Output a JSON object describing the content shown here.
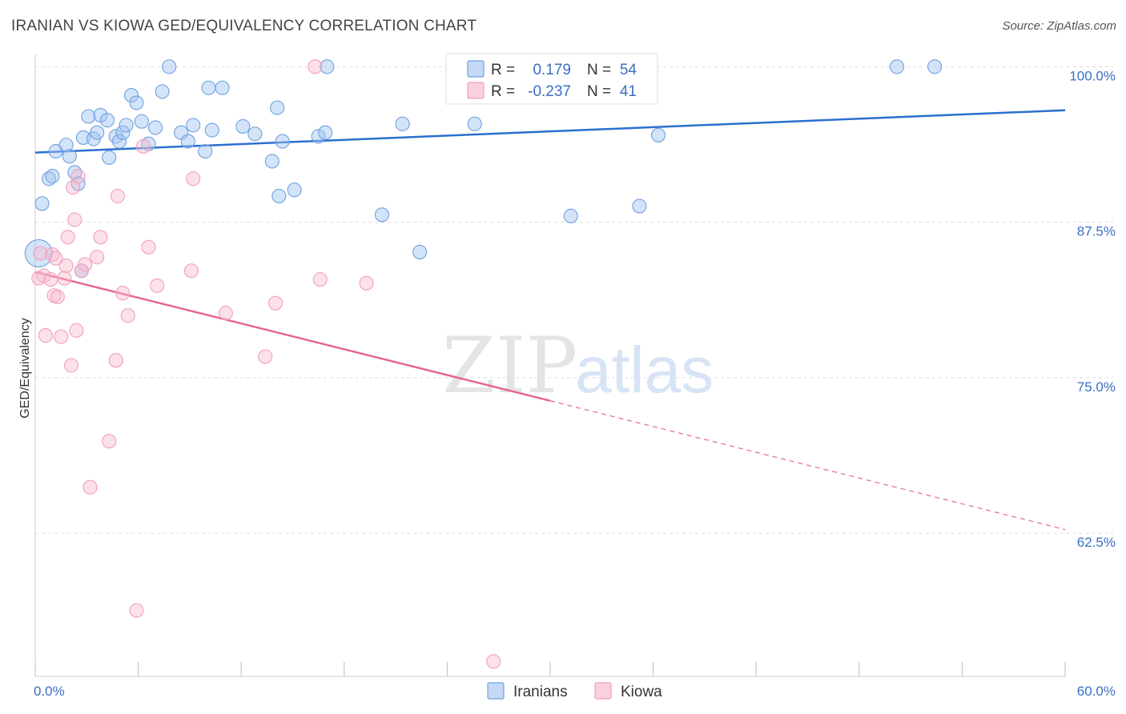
{
  "title": "IRANIAN VS KIOWA GED/EQUIVALENCY CORRELATION CHART",
  "source": "Source: ZipAtlas.com",
  "watermark": {
    "zip": "ZIP",
    "atlas": "atlas"
  },
  "legend_top": [
    {
      "r_label": "R =",
      "r_value": "0.179",
      "n_label": "N =",
      "n_value": "54",
      "color": "#6fa1e0"
    },
    {
      "r_label": "R =",
      "r_value": "-0.237",
      "n_label": "N =",
      "n_value": "41",
      "color": "#f0a0b8"
    }
  ],
  "chart_data": {
    "type": "scatter",
    "xlabel": "",
    "ylabel": "GED/Equivalency",
    "xlim": [
      0,
      60
    ],
    "ylim": [
      51,
      101.5
    ],
    "x_tick_labels": [
      "0.0%",
      "60.0%"
    ],
    "y_ticks": [
      62.5,
      75.0,
      87.5,
      100.0
    ],
    "y_tick_labels": [
      "62.5%",
      "75.0%",
      "87.5%",
      "100.0%"
    ],
    "grid": true,
    "legend_position": "bottom-center",
    "series": [
      {
        "name": "Iranians",
        "color": "#6fa1e0",
        "line_color": "#2a6fcf",
        "trend": {
          "x0": 0,
          "y0": 93.1,
          "x1": 60,
          "y1": 96.5,
          "solid_until": 60
        },
        "points": [
          [
            0.4,
            89.0
          ],
          [
            0.8,
            91.0
          ],
          [
            1.0,
            91.2
          ],
          [
            1.2,
            93.2
          ],
          [
            1.8,
            93.7
          ],
          [
            2.0,
            92.8
          ],
          [
            2.3,
            91.5
          ],
          [
            2.5,
            90.6
          ],
          [
            2.8,
            94.3
          ],
          [
            3.1,
            96.0
          ],
          [
            3.4,
            94.2
          ],
          [
            3.6,
            94.7
          ],
          [
            3.8,
            96.1
          ],
          [
            4.2,
            95.7
          ],
          [
            4.3,
            92.7
          ],
          [
            4.7,
            94.4
          ],
          [
            4.9,
            94.0
          ],
          [
            5.1,
            94.7
          ],
          [
            5.3,
            95.3
          ],
          [
            5.6,
            97.7
          ],
          [
            5.9,
            97.1
          ],
          [
            6.2,
            95.6
          ],
          [
            6.6,
            93.8
          ],
          [
            7.0,
            95.1
          ],
          [
            7.4,
            98.0
          ],
          [
            7.8,
            100.0
          ],
          [
            8.5,
            94.7
          ],
          [
            8.9,
            94.0
          ],
          [
            9.2,
            95.3
          ],
          [
            9.9,
            93.2
          ],
          [
            10.1,
            98.3
          ],
          [
            10.3,
            94.9
          ],
          [
            10.9,
            98.3
          ],
          [
            12.1,
            95.2
          ],
          [
            12.8,
            94.6
          ],
          [
            13.8,
            92.4
          ],
          [
            14.1,
            96.7
          ],
          [
            14.2,
            89.6
          ],
          [
            14.4,
            94.0
          ],
          [
            15.1,
            90.1
          ],
          [
            16.5,
            94.4
          ],
          [
            16.9,
            94.7
          ],
          [
            17.0,
            100.0
          ],
          [
            20.2,
            88.1
          ],
          [
            21.4,
            95.4
          ],
          [
            22.4,
            85.1
          ],
          [
            25.6,
            95.4
          ],
          [
            31.2,
            88.0
          ],
          [
            35.2,
            88.8
          ],
          [
            36.3,
            94.5
          ],
          [
            50.2,
            100.0
          ],
          [
            52.4,
            100.0
          ],
          [
            0.2,
            85.0
          ],
          [
            2.7,
            83.6
          ]
        ]
      },
      {
        "name": "Kiowa",
        "color": "#f0a0b8",
        "line_color": "#e26a92",
        "trend": {
          "x0": 0,
          "y0": 83.5,
          "x1": 60,
          "y1": 62.8,
          "solid_until": 30
        },
        "points": [
          [
            0.2,
            83.0
          ],
          [
            0.3,
            85.0
          ],
          [
            0.5,
            83.2
          ],
          [
            0.6,
            78.4
          ],
          [
            0.9,
            82.9
          ],
          [
            1.0,
            84.9
          ],
          [
            1.1,
            81.6
          ],
          [
            1.2,
            84.6
          ],
          [
            1.3,
            81.5
          ],
          [
            1.5,
            78.3
          ],
          [
            1.7,
            83.0
          ],
          [
            1.8,
            84.0
          ],
          [
            1.9,
            86.3
          ],
          [
            2.1,
            76.0
          ],
          [
            2.2,
            90.3
          ],
          [
            2.3,
            87.7
          ],
          [
            2.4,
            78.8
          ],
          [
            2.5,
            91.2
          ],
          [
            2.9,
            84.1
          ],
          [
            3.2,
            66.2
          ],
          [
            3.6,
            84.7
          ],
          [
            3.8,
            86.3
          ],
          [
            4.3,
            69.9
          ],
          [
            4.7,
            76.4
          ],
          [
            4.8,
            89.6
          ],
          [
            5.1,
            81.8
          ],
          [
            5.4,
            80.0
          ],
          [
            5.9,
            56.3
          ],
          [
            6.3,
            93.6
          ],
          [
            6.6,
            85.5
          ],
          [
            7.1,
            82.4
          ],
          [
            9.1,
            83.6
          ],
          [
            9.2,
            91.0
          ],
          [
            11.1,
            80.2
          ],
          [
            13.4,
            76.7
          ],
          [
            14.0,
            81.0
          ],
          [
            16.3,
            100.0
          ],
          [
            16.6,
            82.9
          ],
          [
            19.3,
            82.6
          ],
          [
            26.7,
            52.2
          ],
          [
            2.7,
            83.6
          ]
        ]
      }
    ]
  },
  "legend_bottom": [
    {
      "label": "Iranians",
      "color": "#6fa1e0"
    },
    {
      "label": "Kiowa",
      "color": "#f0a0b8"
    }
  ]
}
